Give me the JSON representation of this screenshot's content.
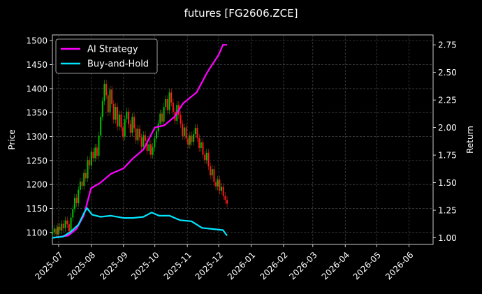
{
  "chart_data": {
    "type": "line",
    "title": "futures [FG2606.ZCE]",
    "ylabel_left": "Price",
    "ylabel_right": "Return",
    "grid": true,
    "legend_position": "top-left",
    "x_ticks": [
      "2025-07",
      "2025-08",
      "2025-09",
      "2025-10",
      "2025-11",
      "2025-12",
      "2026-01",
      "2026-02",
      "2026-03",
      "2026-04",
      "2026-05",
      "2026-06"
    ],
    "y_left_ticks": [
      1100,
      1150,
      1200,
      1250,
      1300,
      1350,
      1400,
      1450,
      1500
    ],
    "y_right_ticks": [
      "1.00",
      "1.25",
      "1.50",
      "1.75",
      "2.00",
      "2.25",
      "2.50",
      "2.75"
    ],
    "y_left_range": [
      1075,
      1512
    ],
    "y_right_range": [
      0.94,
      2.84
    ],
    "x_range": [
      "2025-06-25",
      "2026-06-24"
    ],
    "candles": {
      "start": "2025-06-25",
      "end": "2025-12-09",
      "close": [
        1100,
        1108,
        1096,
        1112,
        1104,
        1118,
        1109,
        1125,
        1117,
        1102,
        1131,
        1149,
        1172,
        1161,
        1189,
        1206,
        1197,
        1224,
        1213,
        1251,
        1240,
        1268,
        1255,
        1277,
        1260,
        1302,
        1341,
        1374,
        1410,
        1386,
        1351,
        1398,
        1368,
        1335,
        1362,
        1321,
        1346,
        1319,
        1300,
        1336,
        1352,
        1326,
        1308,
        1341,
        1317,
        1292,
        1316,
        1298,
        1279,
        1303,
        1291,
        1270,
        1284,
        1262,
        1278,
        1296,
        1311,
        1327,
        1348,
        1331,
        1362,
        1378,
        1355,
        1392,
        1371,
        1352,
        1333,
        1366,
        1345,
        1326,
        1301,
        1319,
        1296,
        1283,
        1302,
        1289,
        1305,
        1318,
        1297,
        1276,
        1288,
        1262,
        1251,
        1266,
        1238,
        1219,
        1232,
        1205,
        1196,
        1210,
        1187,
        1195,
        1176,
        1168,
        1160
      ]
    },
    "series": [
      {
        "name": "AI Strategy",
        "color": "#ff00ff",
        "x": [
          "2025-06-25",
          "2025-07-10",
          "2025-07-18",
          "2025-07-25",
          "2025-08-01",
          "2025-08-10",
          "2025-08-20",
          "2025-09-01",
          "2025-09-10",
          "2025-09-20",
          "2025-10-01",
          "2025-10-10",
          "2025-10-20",
          "2025-10-28",
          "2025-11-01",
          "2025-11-10",
          "2025-11-20",
          "2025-12-01",
          "2025-12-05",
          "2025-12-09"
        ],
        "values": [
          1.0,
          1.02,
          1.08,
          1.2,
          1.45,
          1.5,
          1.58,
          1.63,
          1.72,
          1.8,
          2.0,
          2.02,
          2.1,
          2.22,
          2.25,
          2.32,
          2.5,
          2.66,
          2.75,
          2.75
        ]
      },
      {
        "name": "Buy-and-Hold",
        "color": "#00e5ff",
        "x": [
          "2025-06-25",
          "2025-07-05",
          "2025-07-12",
          "2025-07-20",
          "2025-07-25",
          "2025-07-28",
          "2025-08-02",
          "2025-08-10",
          "2025-08-20",
          "2025-09-01",
          "2025-09-10",
          "2025-09-20",
          "2025-09-28",
          "2025-10-05",
          "2025-10-15",
          "2025-10-25",
          "2025-11-05",
          "2025-11-15",
          "2025-11-25",
          "2025-12-05",
          "2025-12-09"
        ],
        "values": [
          1.0,
          1.01,
          1.05,
          1.12,
          1.22,
          1.27,
          1.21,
          1.19,
          1.2,
          1.18,
          1.18,
          1.19,
          1.23,
          1.2,
          1.2,
          1.16,
          1.15,
          1.09,
          1.08,
          1.07,
          1.02
        ]
      }
    ],
    "colors": {
      "up": "#00c000",
      "down": "#ff1a1a",
      "grid": "#555555",
      "background": "#000000"
    }
  }
}
